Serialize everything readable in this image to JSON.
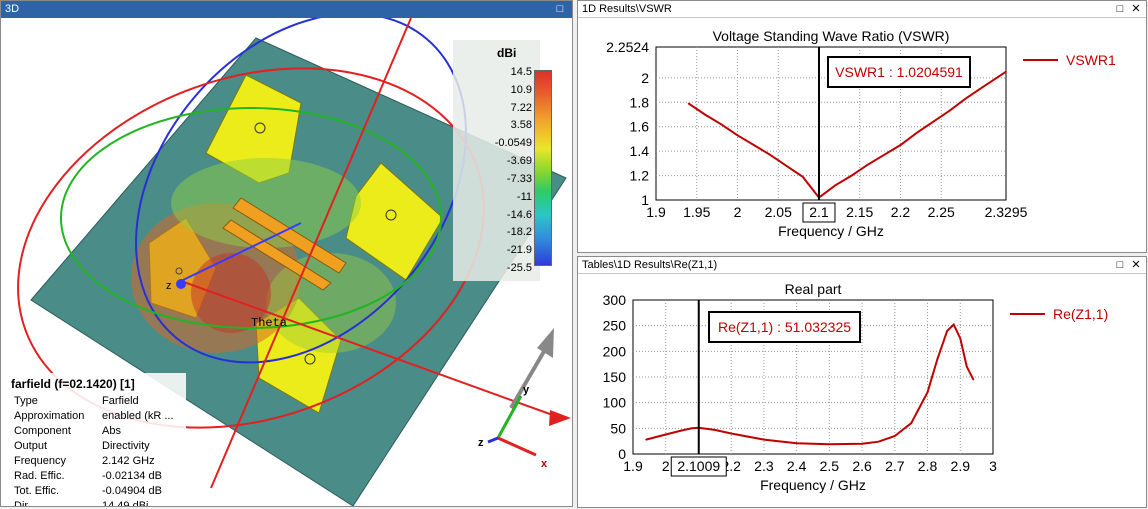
{
  "panels": {
    "view3d": {
      "title": "3D",
      "restore_glyph": "□"
    },
    "vswr": {
      "title": "1D Results\\VSWR",
      "restore_glyph": "□",
      "close_glyph": "✕"
    },
    "z": {
      "title": "Tables\\1D Results\\Re(Z1,1)",
      "restore_glyph": "□",
      "close_glyph": "✕"
    }
  },
  "farfield": {
    "title": "farfield (f=02.1420) [1]",
    "rows": [
      {
        "key": "Type",
        "value": "Farfield"
      },
      {
        "key": "Approximation",
        "value": "enabled (kR ..."
      },
      {
        "key": "Component",
        "value": "Abs"
      },
      {
        "key": "Output",
        "value": "Directivity"
      },
      {
        "key": "Frequency",
        "value": "2.142 GHz"
      },
      {
        "key": "Rad. Effic.",
        "value": "-0.02134 dB"
      },
      {
        "key": "Tot. Effic.",
        "value": "-0.04904 dB"
      },
      {
        "key": "Dir.",
        "value": "14.49 dBi"
      }
    ],
    "theta_label": "Theta",
    "axes": {
      "x": "x",
      "y": "y",
      "z": "z"
    }
  },
  "legend3d": {
    "unit": "dBi",
    "ticks": [
      "14.5",
      "10.9",
      "7.22",
      "3.58",
      "-0.0549",
      "-3.69",
      "-7.33",
      "-11",
      "-14.6",
      "-18.2",
      "-21.9",
      "-25.5"
    ]
  },
  "chart_data": [
    {
      "type": "line",
      "title": "Voltage Standing Wave Ratio (VSWR)",
      "xlabel": "Frequency / GHz",
      "ylabel": "",
      "xlim": [
        1.9,
        2.3295
      ],
      "ylim": [
        1,
        2.2524
      ],
      "x_ticks": [
        "1.9",
        "1.95",
        "2",
        "2.05",
        "2.1",
        "2.15",
        "2.2",
        "2.25",
        "2.3295"
      ],
      "y_ticks": [
        "2.2524",
        "2",
        "1.8",
        "1.6",
        "1.4",
        "1.2",
        "1"
      ],
      "grid": true,
      "legend_position": "right",
      "marker": {
        "x": 2.1,
        "x_label": "2.1",
        "text": "VSWR1 : 1.0204591"
      },
      "series": [
        {
          "name": "VSWR1",
          "color": "#c00000",
          "x": [
            1.94,
            1.96,
            1.98,
            2.0,
            2.02,
            2.04,
            2.06,
            2.08,
            2.1,
            2.12,
            2.14,
            2.16,
            2.18,
            2.2,
            2.22,
            2.24,
            2.26,
            2.28,
            2.3,
            2.3295
          ],
          "y": [
            1.79,
            1.7,
            1.62,
            1.53,
            1.45,
            1.37,
            1.28,
            1.19,
            1.02,
            1.12,
            1.2,
            1.29,
            1.37,
            1.45,
            1.55,
            1.64,
            1.73,
            1.83,
            1.92,
            2.05
          ]
        }
      ]
    },
    {
      "type": "line",
      "title": "Real part",
      "xlabel": "Frequency / GHz",
      "ylabel": "",
      "xlim": [
        1.9,
        3
      ],
      "ylim": [
        0,
        300
      ],
      "x_ticks": [
        "1.9",
        "2",
        "2.1",
        "2.2",
        "2.3",
        "2.4",
        "2.5",
        "2.6",
        "2.7",
        "2.8",
        "2.9",
        "3"
      ],
      "y_ticks": [
        "300",
        "250",
        "200",
        "150",
        "100",
        "50",
        "0"
      ],
      "grid": true,
      "legend_position": "right",
      "marker": {
        "x": 2.1009,
        "x_label": "2.1009",
        "text": "Re(Z1,1) : 51.032325"
      },
      "series": [
        {
          "name": "Re(Z1,1)",
          "color": "#c00000",
          "x": [
            1.94,
            2.0,
            2.05,
            2.08,
            2.1,
            2.15,
            2.2,
            2.3,
            2.4,
            2.5,
            2.6,
            2.65,
            2.7,
            2.75,
            2.8,
            2.83,
            2.86,
            2.88,
            2.9,
            2.92,
            2.94
          ],
          "y": [
            28,
            38,
            46,
            50,
            51,
            47,
            40,
            28,
            21,
            19,
            20,
            24,
            35,
            60,
            120,
            185,
            240,
            252,
            225,
            170,
            145
          ]
        }
      ]
    }
  ]
}
